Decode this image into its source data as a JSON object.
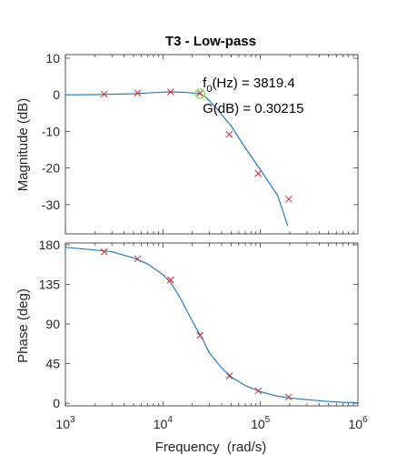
{
  "chart_data": [
    {
      "type": "line",
      "title": "T3 - Low-pass",
      "xlabel": "",
      "ylabel": "Magnitude (dB)",
      "xscale": "log",
      "xlim": [
        1000,
        1000000
      ],
      "ylim": [
        -38,
        11
      ],
      "yticks": [
        10,
        0,
        -10,
        -20,
        -30
      ],
      "grid": false,
      "series": [
        {
          "style": "line",
          "color": "#2a7ab9",
          "x": [
            1000,
            2000,
            5000,
            8000,
            12000,
            16000,
            20000,
            24000,
            28000,
            35000,
            50000,
            70000,
            100000,
            150000,
            190000
          ],
          "y": [
            0.0,
            0.05,
            0.3,
            0.6,
            0.8,
            0.7,
            0.5,
            0.3,
            -0.8,
            -3.5,
            -8.5,
            -14.5,
            -20.5,
            -27.5,
            -35.7
          ]
        },
        {
          "style": "markers",
          "marker": "x",
          "color": "#e32020",
          "x": [
            2500,
            5500,
            12000,
            24000,
            48000,
            95000,
            195000
          ],
          "y": [
            0.2,
            0.5,
            0.8,
            0.5,
            -10.8,
            -21.5,
            -28.5
          ]
        }
      ],
      "annotation": {
        "marker": {
          "x": 24000,
          "y": 0.3,
          "shape": "circle",
          "color": "#8ce060"
        },
        "lines": [
          {
            "prefix": "f",
            "sub": "0",
            "suffix": "(Hz) = 3819.4"
          },
          {
            "prefix": "G(dB) = 0.30215",
            "sub": "",
            "suffix": ""
          }
        ]
      }
    },
    {
      "type": "line",
      "title": "",
      "xlabel": "Frequency  (rad/s)",
      "ylabel": "Phase (deg)",
      "xscale": "log",
      "xlim": [
        1000,
        1000000
      ],
      "ylim": [
        -3,
        182
      ],
      "yticks": [
        180,
        135,
        90,
        45,
        0
      ],
      "xticks": [
        {
          "value": 1000,
          "base": "10",
          "exp": "3"
        },
        {
          "value": 10000,
          "base": "10",
          "exp": "4"
        },
        {
          "value": 100000,
          "base": "10",
          "exp": "5"
        },
        {
          "value": 1000000,
          "base": "10",
          "exp": "6"
        }
      ],
      "grid": false,
      "series": [
        {
          "style": "line",
          "color": "#2a7ab9",
          "x": [
            1000,
            2000,
            3000,
            5000,
            7000,
            10000,
            12000,
            15000,
            18000,
            22000,
            26000,
            30000,
            40000,
            50000,
            70000,
            100000,
            150000,
            200000,
            300000,
            500000,
            700000,
            1000000
          ],
          "y": [
            177,
            174,
            172,
            165,
            158,
            146,
            137,
            120,
            103,
            85,
            71,
            57,
            40,
            30,
            20,
            13,
            8,
            6,
            4,
            2,
            1,
            0.5
          ]
        },
        {
          "style": "markers",
          "marker": "x",
          "color": "#e32020",
          "x": [
            2500,
            5500,
            12000,
            24000,
            48000,
            95000,
            195000
          ],
          "y": [
            172,
            164,
            140,
            77,
            31,
            14,
            7
          ]
        }
      ]
    }
  ]
}
